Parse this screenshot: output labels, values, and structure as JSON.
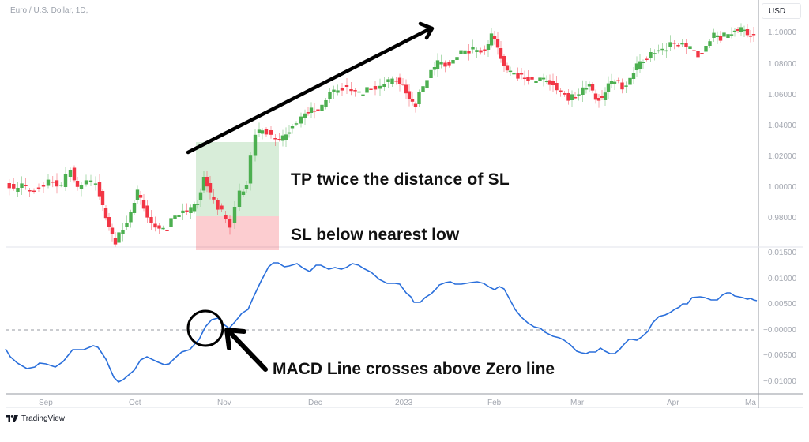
{
  "header": {
    "symbol_title": "Euro / U.S. Dollar, 1D,",
    "currency_badge": "USD"
  },
  "price_axis": {
    "ticks": [
      {
        "label": "1.10000",
        "y": 42
      },
      {
        "label": "1.08000",
        "y": 82
      },
      {
        "label": "1.06000",
        "y": 121
      },
      {
        "label": "1.04000",
        "y": 160
      },
      {
        "label": "1.02000",
        "y": 199
      },
      {
        "label": "1.00000",
        "y": 238
      },
      {
        "label": "0.98000",
        "y": 277
      }
    ]
  },
  "macd_axis": {
    "ticks": [
      {
        "label": "0.01500",
        "y": 321
      },
      {
        "label": "0.01000",
        "y": 354
      },
      {
        "label": "0.00500",
        "y": 386
      },
      {
        "label": "−0.00000",
        "y": 419
      },
      {
        "label": "−0.00500",
        "y": 451
      },
      {
        "label": "−0.01000",
        "y": 484
      }
    ]
  },
  "time_axis": {
    "ticks": [
      {
        "label": "Sep",
        "x": 57
      },
      {
        "label": "Oct",
        "x": 171
      },
      {
        "label": "Nov",
        "x": 283
      },
      {
        "label": "Dec",
        "x": 398
      },
      {
        "label": "2023",
        "x": 508
      },
      {
        "label": "Feb",
        "x": 625
      },
      {
        "label": "Mar",
        "x": 730
      },
      {
        "label": "Apr",
        "x": 852
      },
      {
        "label": "Ma",
        "x": 951
      }
    ]
  },
  "annotations": {
    "tp_text": "TP twice the distance of SL",
    "sl_text": "SL below nearest low",
    "macd_text": "MACD Line crosses above Zero line"
  },
  "branding": {
    "logo_text": "TradingView"
  },
  "colors": {
    "bull": "#26a69a",
    "bull_green": "#4caf50",
    "bear": "#f23645",
    "macd_line": "#2962ff",
    "tp_zone": "rgba(76,175,80,0.22)",
    "sl_zone": "rgba(242,54,69,0.25)"
  },
  "chart_data": [
    {
      "type": "candlestick",
      "title": "Euro / U.S. Dollar, 1D",
      "xlabel": "",
      "ylabel": "USD",
      "ylim": [
        0.965,
        1.11
      ],
      "x_ticks": [
        "Sep",
        "Oct",
        "Nov",
        "Dec",
        "2023",
        "Feb",
        "Mar",
        "Apr",
        "Ma"
      ],
      "approx_close_path": [
        {
          "date": "Aug end",
          "close": 1.0
        },
        {
          "date": "Sep mid",
          "close": 1.003
        },
        {
          "date": "Sep 12",
          "close": 1.016
        },
        {
          "date": "Sep end",
          "close": 0.975
        },
        {
          "date": "Oct 4",
          "close": 0.998
        },
        {
          "date": "Oct 13",
          "close": 0.97
        },
        {
          "date": "Oct 25",
          "close": 0.997
        },
        {
          "date": "Nov 3",
          "close": 0.975
        },
        {
          "date": "Nov 15",
          "close": 1.035
        },
        {
          "date": "Dec 1",
          "close": 1.045
        },
        {
          "date": "Dec 15",
          "close": 1.06
        },
        {
          "date": "Jan 5",
          "close": 1.05
        },
        {
          "date": "Jan 20",
          "close": 1.085
        },
        {
          "date": "Feb 2",
          "close": 1.095
        },
        {
          "date": "Feb 10",
          "close": 1.072
        },
        {
          "date": "Mar 1",
          "close": 1.058
        },
        {
          "date": "Mar 15",
          "close": 1.062
        },
        {
          "date": "Apr 1",
          "close": 1.085
        },
        {
          "date": "Apr 14",
          "close": 1.098
        },
        {
          "date": "May 1",
          "close": 1.1
        }
      ],
      "zones": [
        {
          "name": "Take Profit",
          "from": 0.98,
          "to": 1.03,
          "color": "green"
        },
        {
          "name": "Stop Loss",
          "from": 0.963,
          "to": 0.98,
          "color": "red"
        }
      ],
      "annotations": [
        "TP twice the distance of SL",
        "SL below nearest low",
        "Trend arrow up"
      ]
    },
    {
      "type": "line",
      "title": "MACD",
      "ylim": [
        -0.0115,
        0.016
      ],
      "zero_line": true,
      "series": [
        {
          "name": "MACD Line",
          "points": [
            {
              "date": "Aug end",
              "value": -0.002
            },
            {
              "date": "Sep 5",
              "value": -0.007
            },
            {
              "date": "Sep 15",
              "value": -0.006
            },
            {
              "date": "Sep 25",
              "value": -0.003
            },
            {
              "date": "Oct 3",
              "value": -0.004
            },
            {
              "date": "Oct 10",
              "value": -0.01
            },
            {
              "date": "Oct 18",
              "value": -0.0055
            },
            {
              "date": "Oct 25",
              "value": -0.0065
            },
            {
              "date": "Nov 1",
              "value": -0.003
            },
            {
              "date": "Nov 5",
              "value": 0.002
            },
            {
              "date": "Nov 9",
              "value": 0.0
            },
            {
              "date": "Nov 15",
              "value": 0.005
            },
            {
              "date": "Nov 22",
              "value": 0.013
            },
            {
              "date": "Dec 5",
              "value": 0.0125
            },
            {
              "date": "Dec 20",
              "value": 0.012
            },
            {
              "date": "Jan 5",
              "value": 0.0055
            },
            {
              "date": "Jan 15",
              "value": 0.0085
            },
            {
              "date": "Jan 28",
              "value": 0.0085
            },
            {
              "date": "Feb 10",
              "value": 0.001
            },
            {
              "date": "Feb 25",
              "value": -0.004
            },
            {
              "date": "Mar 5",
              "value": -0.0045
            },
            {
              "date": "Mar 15",
              "value": -0.0015
            },
            {
              "date": "Mar 25",
              "value": 0.0025
            },
            {
              "date": "Apr 5",
              "value": 0.005
            },
            {
              "date": "Apr 15",
              "value": 0.006
            },
            {
              "date": "May 1",
              "value": 0.005
            }
          ]
        }
      ],
      "annotations": [
        "MACD Line crosses above Zero line"
      ]
    }
  ]
}
